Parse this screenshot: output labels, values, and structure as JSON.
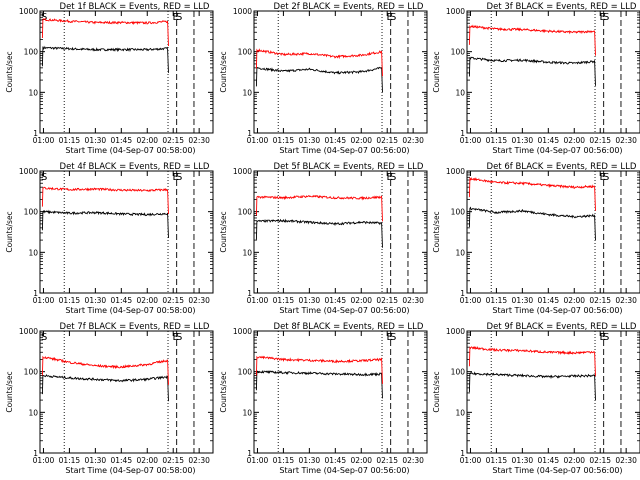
{
  "chart_data": [
    {
      "type": "line",
      "title": "Det 1f BLACK = Events, RED = LLD",
      "xlabel": "Start Time (04-Sep-07 00:58:00)",
      "ylabel": "Counts/sec",
      "y_scale": "log",
      "ylim": [
        1,
        1000
      ],
      "y_ticks": [
        "1",
        "10",
        "100",
        "1000"
      ],
      "xlim": [
        "00:58",
        "02:38"
      ],
      "x_ticks": [
        "01:00",
        "01:15",
        "01:30",
        "01:45",
        "02:00",
        "02:15",
        "02:30"
      ],
      "markers": [
        {
          "label": "S",
          "time": "00:58"
        },
        {
          "label": "E",
          "time": "02:14"
        },
        {
          "label": "S",
          "time": "02:16"
        }
      ],
      "series": [
        {
          "name": "Events",
          "color": "#000000",
          "x": [
            "01:00",
            "01:15",
            "01:30",
            "01:45",
            "02:00",
            "02:12"
          ],
          "values": [
            125,
            118,
            112,
            113,
            112,
            120
          ]
        },
        {
          "name": "LLD",
          "color": "#ff0000",
          "x": [
            "01:00",
            "01:15",
            "01:30",
            "01:45",
            "02:00",
            "02:12"
          ],
          "values": [
            620,
            560,
            520,
            520,
            510,
            550
          ]
        }
      ]
    },
    {
      "type": "line",
      "title": "Det 2f BLACK = Events, RED = LLD",
      "xlabel": "Start Time (04-Sep-07 00:56:00)",
      "ylabel": "Counts/sec",
      "y_scale": "log",
      "ylim": [
        1,
        1000
      ],
      "y_ticks": [
        "1",
        "10",
        "100",
        "1000"
      ],
      "xlim": [
        "00:58",
        "02:38"
      ],
      "x_ticks": [
        "01:00",
        "01:15",
        "01:30",
        "01:45",
        "02:00",
        "02:15",
        "02:30"
      ],
      "markers": [
        {
          "label": "E",
          "time": "02:14"
        },
        {
          "label": "S",
          "time": "02:16"
        }
      ],
      "series": [
        {
          "name": "Events",
          "color": "#000000",
          "x": [
            "01:00",
            "01:15",
            "01:30",
            "01:45",
            "02:00",
            "02:12"
          ],
          "values": [
            40,
            33,
            37,
            30,
            32,
            40
          ]
        },
        {
          "name": "LLD",
          "color": "#ff0000",
          "x": [
            "01:00",
            "01:15",
            "01:30",
            "01:45",
            "02:00",
            "02:12"
          ],
          "values": [
            110,
            85,
            90,
            75,
            82,
            100
          ]
        }
      ]
    },
    {
      "type": "line",
      "title": "Det 3f BLACK = Events, RED = LLD",
      "xlabel": "Start Time (04-Sep-07 00:56:00)",
      "ylabel": "Counts/sec",
      "y_scale": "log",
      "ylim": [
        1,
        1000
      ],
      "y_ticks": [
        "1",
        "10",
        "100",
        "1000"
      ],
      "xlim": [
        "00:58",
        "02:38"
      ],
      "x_ticks": [
        "01:00",
        "01:15",
        "01:30",
        "01:45",
        "02:00",
        "02:15",
        "02:30"
      ],
      "markers": [
        {
          "label": "E",
          "time": "02:14"
        },
        {
          "label": "S",
          "time": "02:16"
        }
      ],
      "series": [
        {
          "name": "Events",
          "color": "#000000",
          "x": [
            "01:00",
            "01:15",
            "01:30",
            "01:45",
            "02:00",
            "02:12"
          ],
          "values": [
            70,
            60,
            62,
            55,
            52,
            58
          ]
        },
        {
          "name": "LLD",
          "color": "#ff0000",
          "x": [
            "01:00",
            "01:15",
            "01:30",
            "01:45",
            "02:00",
            "02:12"
          ],
          "values": [
            420,
            360,
            350,
            320,
            300,
            320
          ]
        }
      ]
    },
    {
      "type": "line",
      "title": "Det 4f BLACK = Events, RED = LLD",
      "xlabel": "Start Time (04-Sep-07 00:58:00)",
      "ylabel": "Counts/sec",
      "y_scale": "log",
      "ylim": [
        1,
        1000
      ],
      "y_ticks": [
        "1",
        "10",
        "100",
        "1000"
      ],
      "xlim": [
        "00:58",
        "02:38"
      ],
      "x_ticks": [
        "01:00",
        "01:15",
        "01:30",
        "01:45",
        "02:00",
        "02:15",
        "02:30"
      ],
      "markers": [
        {
          "label": "S",
          "time": "00:58"
        },
        {
          "label": "E",
          "time": "02:14"
        },
        {
          "label": "S",
          "time": "02:16"
        }
      ],
      "series": [
        {
          "name": "Events",
          "color": "#000000",
          "x": [
            "01:00",
            "01:15",
            "01:30",
            "01:45",
            "02:00",
            "02:12"
          ],
          "values": [
            100,
            92,
            95,
            88,
            85,
            90
          ]
        },
        {
          "name": "LLD",
          "color": "#ff0000",
          "x": [
            "01:00",
            "01:15",
            "01:30",
            "01:45",
            "02:00",
            "02:12"
          ],
          "values": [
            380,
            350,
            360,
            340,
            330,
            350
          ]
        }
      ]
    },
    {
      "type": "line",
      "title": "Det 5f BLACK = Events, RED = LLD",
      "xlabel": "Start Time (04-Sep-07 00:56:00)",
      "ylabel": "Counts/sec",
      "y_scale": "log",
      "ylim": [
        1,
        1000
      ],
      "y_ticks": [
        "1",
        "10",
        "100",
        "1000"
      ],
      "xlim": [
        "00:58",
        "02:38"
      ],
      "x_ticks": [
        "01:00",
        "01:15",
        "01:30",
        "01:45",
        "02:00",
        "02:15",
        "02:30"
      ],
      "markers": [
        {
          "label": "E",
          "time": "02:14"
        },
        {
          "label": "S",
          "time": "02:16"
        }
      ],
      "series": [
        {
          "name": "Events",
          "color": "#000000",
          "x": [
            "01:00",
            "01:15",
            "01:30",
            "01:45",
            "02:00",
            "02:12"
          ],
          "values": [
            58,
            60,
            55,
            50,
            55,
            52
          ]
        },
        {
          "name": "LLD",
          "color": "#ff0000",
          "x": [
            "01:00",
            "01:15",
            "01:30",
            "01:45",
            "02:00",
            "02:12"
          ],
          "values": [
            230,
            220,
            240,
            220,
            215,
            230
          ]
        }
      ]
    },
    {
      "type": "line",
      "title": "Det 6f BLACK = Events, RED = LLD",
      "xlabel": "Start Time (04-Sep-07 00:56:00)",
      "ylabel": "Counts/sec",
      "y_scale": "log",
      "ylim": [
        1,
        1000
      ],
      "y_ticks": [
        "1",
        "10",
        "100",
        "1000"
      ],
      "xlim": [
        "00:58",
        "02:38"
      ],
      "x_ticks": [
        "01:00",
        "01:15",
        "01:30",
        "01:45",
        "02:00",
        "02:15",
        "02:30"
      ],
      "markers": [
        {
          "label": "E",
          "time": "02:14"
        },
        {
          "label": "S",
          "time": "02:16"
        }
      ],
      "series": [
        {
          "name": "Events",
          "color": "#000000",
          "x": [
            "01:00",
            "01:15",
            "01:30",
            "01:45",
            "02:00",
            "02:12"
          ],
          "values": [
            120,
            95,
            105,
            85,
            75,
            80
          ]
        },
        {
          "name": "LLD",
          "color": "#ff0000",
          "x": [
            "01:00",
            "01:15",
            "01:30",
            "01:45",
            "02:00",
            "02:12"
          ],
          "values": [
            650,
            520,
            500,
            440,
            400,
            420
          ]
        }
      ]
    },
    {
      "type": "line",
      "title": "Det 7f BLACK = Events, RED = LLD",
      "xlabel": "Start Time (04-Sep-07 00:58:00)",
      "ylabel": "Counts/sec",
      "y_scale": "log",
      "ylim": [
        1,
        1000
      ],
      "y_ticks": [
        "1",
        "10",
        "100",
        "1000"
      ],
      "xlim": [
        "00:58",
        "02:38"
      ],
      "x_ticks": [
        "01:00",
        "01:15",
        "01:30",
        "01:45",
        "02:00",
        "02:15",
        "02:30"
      ],
      "markers": [
        {
          "label": "S",
          "time": "00:58"
        },
        {
          "label": "E",
          "time": "02:14"
        },
        {
          "label": "S",
          "time": "02:16"
        }
      ],
      "series": [
        {
          "name": "Events",
          "color": "#000000",
          "x": [
            "01:00",
            "01:15",
            "01:30",
            "01:45",
            "02:00",
            "02:12"
          ],
          "values": [
            80,
            70,
            65,
            60,
            65,
            75
          ]
        },
        {
          "name": "LLD",
          "color": "#ff0000",
          "x": [
            "01:00",
            "01:15",
            "01:30",
            "01:45",
            "02:00",
            "02:12"
          ],
          "values": [
            230,
            170,
            140,
            130,
            150,
            190
          ]
        }
      ]
    },
    {
      "type": "line",
      "title": "Det 8f BLACK = Events, RED = LLD",
      "xlabel": "Start Time (04-Sep-07 00:56:00)",
      "ylabel": "Counts/sec",
      "y_scale": "log",
      "ylim": [
        1,
        1000
      ],
      "y_ticks": [
        "1",
        "10",
        "100",
        "1000"
      ],
      "xlim": [
        "00:58",
        "02:38"
      ],
      "x_ticks": [
        "01:00",
        "01:15",
        "01:30",
        "01:45",
        "02:00",
        "02:15",
        "02:30"
      ],
      "markers": [
        {
          "label": "E",
          "time": "02:14"
        },
        {
          "label": "S",
          "time": "02:16"
        }
      ],
      "series": [
        {
          "name": "Events",
          "color": "#000000",
          "x": [
            "01:00",
            "01:15",
            "01:30",
            "01:45",
            "02:00",
            "02:12"
          ],
          "values": [
            100,
            95,
            92,
            88,
            85,
            88
          ]
        },
        {
          "name": "LLD",
          "color": "#ff0000",
          "x": [
            "01:00",
            "01:15",
            "01:30",
            "01:45",
            "02:00",
            "02:12"
          ],
          "values": [
            230,
            200,
            190,
            180,
            185,
            200
          ]
        }
      ]
    },
    {
      "type": "line",
      "title": "Det 9f BLACK = Events, RED = LLD",
      "xlabel": "Start Time (04-Sep-07 00:56:00)",
      "ylabel": "Counts/sec",
      "y_scale": "log",
      "ylim": [
        1,
        1000
      ],
      "y_ticks": [
        "1",
        "10",
        "100",
        "1000"
      ],
      "xlim": [
        "00:58",
        "02:38"
      ],
      "x_ticks": [
        "01:00",
        "01:15",
        "01:30",
        "01:45",
        "02:00",
        "02:15",
        "02:30"
      ],
      "markers": [
        {
          "label": "E",
          "time": "02:14"
        },
        {
          "label": "S",
          "time": "02:16"
        }
      ],
      "series": [
        {
          "name": "Events",
          "color": "#000000",
          "x": [
            "01:00",
            "01:15",
            "01:30",
            "01:45",
            "02:00",
            "02:12"
          ],
          "values": [
            90,
            85,
            80,
            75,
            78,
            80
          ]
        },
        {
          "name": "LLD",
          "color": "#ff0000",
          "x": [
            "01:00",
            "01:15",
            "01:30",
            "01:45",
            "02:00",
            "02:12"
          ],
          "values": [
            390,
            340,
            330,
            300,
            290,
            310
          ]
        }
      ]
    }
  ]
}
